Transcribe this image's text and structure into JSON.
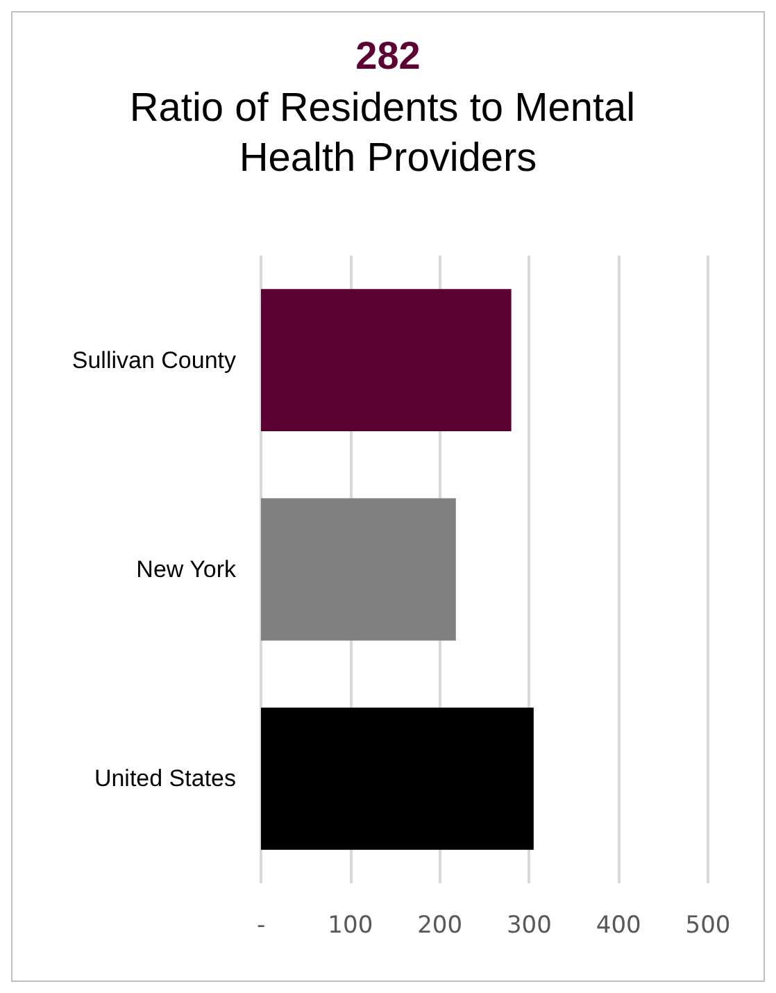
{
  "chart_data": {
    "type": "bar",
    "orientation": "horizontal",
    "title": "282",
    "subtitle": "Ratio of Residents to Mental Health Providers",
    "categories": [
      "Sullivan County",
      "New York",
      "United States"
    ],
    "values": [
      280,
      218,
      305
    ],
    "colors": [
      "#5c0033",
      "#808080",
      "#000000"
    ],
    "xlim": [
      0,
      500
    ],
    "xticks": [
      {
        "value": 0,
        "label": "-"
      },
      100,
      200,
      300,
      400,
      500
    ],
    "grid": "x"
  }
}
